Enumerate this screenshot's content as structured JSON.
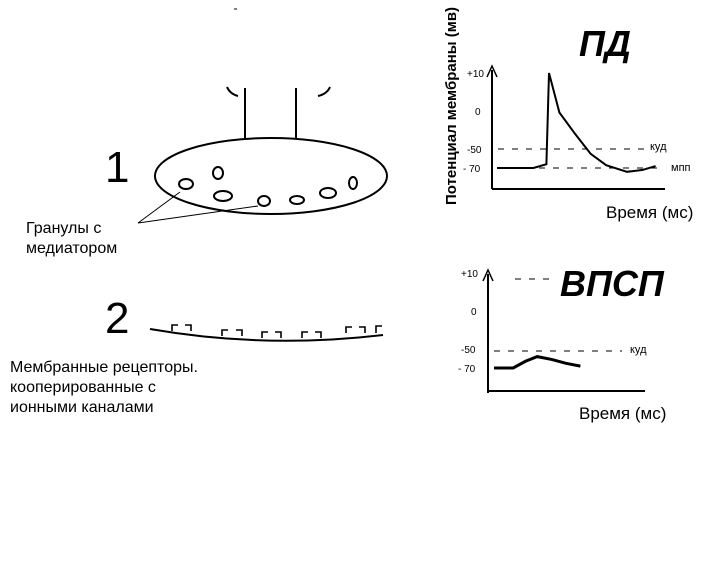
{
  "synapse": {
    "label_1": "1",
    "label_2": "2",
    "granules_caption": [
      "Гранулы с",
      "медиатором"
    ],
    "receptors_caption": [
      "Мембранные рецепторы.",
      "кооперированные с",
      "ионными каналами"
    ]
  },
  "chart_data": [
    {
      "type": "line",
      "title": "ПД",
      "ylabel": "Потенциал мембраны (мв)",
      "xlabel": "Время (мс)",
      "y_ticks": [
        "+10",
        "0",
        "-50",
        "- 70"
      ],
      "reference_lines": [
        {
          "label": "куд",
          "y": -50
        },
        {
          "label": "мпп",
          "y": -70
        }
      ],
      "series": [
        {
          "values": [
            [
              0,
              -70
            ],
            [
              1.4,
              -70
            ],
            [
              1.9,
              -66
            ],
            [
              2.0,
              10
            ],
            [
              2.4,
              -2
            ],
            [
              3.0,
              -30
            ],
            [
              3.6,
              -55
            ],
            [
              4.2,
              -67
            ],
            [
              5.0,
              -74
            ],
            [
              5.6,
              -72
            ],
            [
              6.1,
              -68
            ]
          ]
        }
      ]
    },
    {
      "type": "line",
      "title": "ВПСП",
      "xlabel": "Время (мс)",
      "y_ticks": [
        "+10",
        "0",
        "-50",
        "- 70"
      ],
      "reference_lines": [
        {
          "label": "куд",
          "y": -50
        }
      ],
      "series": [
        {
          "values": [
            [
              0,
              -70
            ],
            [
              0.8,
              -70
            ],
            [
              1.3,
              -63
            ],
            [
              1.8,
              -58
            ],
            [
              2.4,
              -61
            ],
            [
              3.0,
              -65
            ],
            [
              3.6,
              -68
            ]
          ]
        }
      ]
    }
  ]
}
